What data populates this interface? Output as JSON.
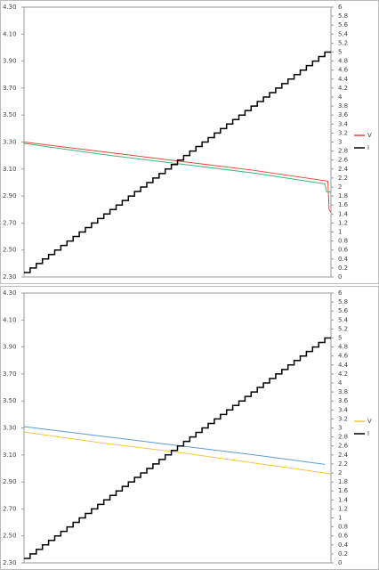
{
  "chart_data": [
    {
      "type": "line",
      "xlim": [
        0,
        50
      ],
      "ylim": [
        2.3,
        4.3
      ],
      "yticks": [
        {
          "value": 2.3,
          "label": "2.30"
        },
        {
          "value": 2.5,
          "label": "2.50"
        },
        {
          "value": 2.7,
          "label": "2.70"
        },
        {
          "value": 2.9,
          "label": "2.90"
        },
        {
          "value": 3.1,
          "label": "3.10"
        },
        {
          "value": 3.3,
          "label": "3.30"
        },
        {
          "value": 3.5,
          "label": "3.50"
        },
        {
          "value": 3.7,
          "label": "3.70"
        },
        {
          "value": 3.9,
          "label": "3.90"
        },
        {
          "value": 4.1,
          "label": "4.10"
        },
        {
          "value": 4.3,
          "label": "4.30"
        }
      ],
      "y2lim": [
        0,
        6
      ],
      "y2ticks": [
        0,
        0.2,
        0.4,
        0.6,
        0.8,
        1,
        1.2,
        1.4,
        1.6,
        1.8,
        2,
        2.2,
        2.4,
        2.6,
        2.8,
        3,
        3.2,
        3.4,
        3.6,
        3.8,
        4,
        4.2,
        4.4,
        4.6,
        4.8,
        5,
        5.2,
        5.4,
        5.6,
        5.8,
        6
      ],
      "grid": false,
      "series": [
        {
          "name": "V",
          "color": "#e8463c",
          "x": [
            0,
            12.5,
            25,
            37.5,
            49.5,
            49.7,
            50
          ],
          "values": [
            3.3,
            3.23,
            3.16,
            3.09,
            3.01,
            2.8,
            2.78
          ]
        },
        {
          "color": "#3cb878",
          "x": [
            0,
            12.5,
            25,
            37.5,
            49,
            49.3,
            50
          ],
          "values": [
            3.29,
            3.21,
            3.14,
            3.07,
            2.99,
            2.93,
            2.93
          ]
        },
        {
          "name": "I",
          "color": "#000000",
          "axis": "y2",
          "drawstyle": "steps-post",
          "x": [
            0,
            1,
            2,
            3,
            4,
            5,
            6,
            7,
            8,
            9,
            10,
            11,
            12,
            13,
            14,
            15,
            16,
            17,
            18,
            19,
            20,
            21,
            22,
            23,
            24,
            25,
            26,
            27,
            28,
            29,
            30,
            31,
            32,
            33,
            34,
            35,
            36,
            37,
            38,
            39,
            40,
            41,
            42,
            43,
            44,
            45,
            46,
            47,
            48,
            49
          ],
          "values": [
            0.1,
            0.2,
            0.3,
            0.4,
            0.5,
            0.6,
            0.7,
            0.8,
            0.9,
            1,
            1.1,
            1.2,
            1.3,
            1.4,
            1.5,
            1.6,
            1.7,
            1.8,
            1.9,
            2,
            2.1,
            2.2,
            2.3,
            2.4,
            2.5,
            2.6,
            2.7,
            2.8,
            2.9,
            3,
            3.1,
            3.2,
            3.3,
            3.4,
            3.5,
            3.6,
            3.7,
            3.8,
            3.9,
            4,
            4.1,
            4.2,
            4.3,
            4.4,
            4.5,
            4.6,
            4.7,
            4.8,
            4.9,
            5
          ]
        }
      ]
    },
    {
      "type": "line",
      "xlim": [
        0,
        50
      ],
      "ylim": [
        2.3,
        4.3
      ],
      "yticks": [
        {
          "value": 2.3,
          "label": "2.30"
        },
        {
          "value": 2.5,
          "label": "2.50"
        },
        {
          "value": 2.7,
          "label": "2.70"
        },
        {
          "value": 2.9,
          "label": "2.90"
        },
        {
          "value": 3.1,
          "label": "3.10"
        },
        {
          "value": 3.3,
          "label": "3.30"
        },
        {
          "value": 3.5,
          "label": "3.50"
        },
        {
          "value": 3.7,
          "label": "3.70"
        },
        {
          "value": 3.9,
          "label": "3.90"
        },
        {
          "value": 4.1,
          "label": "4.10"
        },
        {
          "value": 4.3,
          "label": "4.30"
        }
      ],
      "y2lim": [
        0,
        6
      ],
      "y2ticks": [
        0,
        0.2,
        0.4,
        0.6,
        0.8,
        1,
        1.2,
        1.4,
        1.6,
        1.8,
        2,
        2.2,
        2.4,
        2.6,
        2.8,
        3,
        3.2,
        3.4,
        3.6,
        3.8,
        4,
        4.2,
        4.4,
        4.6,
        4.8,
        5,
        5.2,
        5.4,
        5.6,
        5.8,
        6
      ],
      "grid": false,
      "series": [
        {
          "color": "#5b9bd5",
          "x": [
            0,
            12.5,
            25,
            37.5,
            49
          ],
          "values": [
            3.31,
            3.24,
            3.17,
            3.1,
            3.03
          ]
        },
        {
          "name": "V",
          "color": "#f5c542",
          "x": [
            0,
            12.5,
            25,
            37.5,
            50
          ],
          "values": [
            3.27,
            3.19,
            3.12,
            3.04,
            2.96
          ]
        },
        {
          "name": "I",
          "color": "#000000",
          "axis": "y2",
          "drawstyle": "steps-post",
          "x": [
            0,
            1,
            2,
            3,
            4,
            5,
            6,
            7,
            8,
            9,
            10,
            11,
            12,
            13,
            14,
            15,
            16,
            17,
            18,
            19,
            20,
            21,
            22,
            23,
            24,
            25,
            26,
            27,
            28,
            29,
            30,
            31,
            32,
            33,
            34,
            35,
            36,
            37,
            38,
            39,
            40,
            41,
            42,
            43,
            44,
            45,
            46,
            47,
            48,
            49
          ],
          "values": [
            0.1,
            0.2,
            0.3,
            0.4,
            0.5,
            0.6,
            0.7,
            0.8,
            0.9,
            1,
            1.1,
            1.2,
            1.3,
            1.4,
            1.5,
            1.6,
            1.7,
            1.8,
            1.9,
            2,
            2.1,
            2.2,
            2.3,
            2.4,
            2.5,
            2.6,
            2.7,
            2.8,
            2.9,
            3,
            3.1,
            3.2,
            3.3,
            3.4,
            3.5,
            3.6,
            3.7,
            3.8,
            3.9,
            4,
            4.1,
            4.2,
            4.3,
            4.4,
            4.5,
            4.6,
            4.7,
            4.8,
            4.9,
            5
          ]
        }
      ]
    }
  ]
}
